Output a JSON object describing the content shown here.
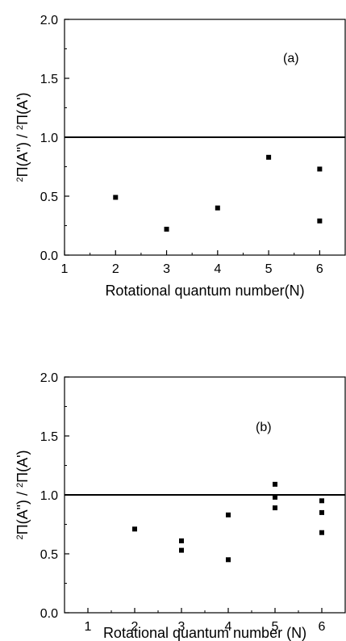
{
  "chart_data": [
    {
      "type": "scatter",
      "panel_label": "(a)",
      "xlabel": "Rotational quantum number(N)",
      "ylabel": {
        "pre_sup": "2",
        "num": "Π(A\")",
        "sep": " / ",
        "den_sup": "2",
        "den": "Π(A')"
      },
      "xlim": [
        1,
        6.5
      ],
      "ylim": [
        0,
        2
      ],
      "xticks": [
        1,
        2,
        3,
        4,
        5,
        6
      ],
      "yticks": [
        0.0,
        0.5,
        1.0,
        1.5,
        2.0
      ],
      "xtick_labels": [
        "1",
        "2",
        "3",
        "4",
        "5",
        "6"
      ],
      "ytick_labels": [
        "0.0",
        "0.5",
        "1.0",
        "1.5",
        "2.0"
      ],
      "reference_line_y": 1.0,
      "points": [
        {
          "x": 2,
          "y": 0.49
        },
        {
          "x": 3,
          "y": 0.22
        },
        {
          "x": 4,
          "y": 0.4
        },
        {
          "x": 5,
          "y": 0.83
        },
        {
          "x": 6,
          "y": 0.73
        },
        {
          "x": 6,
          "y": 0.29
        }
      ],
      "grid": false
    },
    {
      "type": "scatter",
      "panel_label": "(b)",
      "xlabel": "Rotational quantum number (N)",
      "ylabel": {
        "pre_sup": "2",
        "num": "Π(A\")",
        "sep": " / ",
        "den_sup": "2",
        "den": "Π(A')"
      },
      "xlim": [
        0.5,
        6.5
      ],
      "ylim": [
        0,
        2
      ],
      "xticks": [
        1,
        2,
        3,
        4,
        5,
        6
      ],
      "yticks": [
        0.0,
        0.5,
        1.0,
        1.5,
        2.0
      ],
      "xtick_labels": [
        "1",
        "2",
        "3",
        "4",
        "5",
        "6"
      ],
      "ytick_labels": [
        "0.0",
        "0.5",
        "1.0",
        "1.5",
        "2.0"
      ],
      "reference_line_y": 1.0,
      "points": [
        {
          "x": 2,
          "y": 0.71
        },
        {
          "x": 3,
          "y": 0.61
        },
        {
          "x": 3,
          "y": 0.53
        },
        {
          "x": 4,
          "y": 0.83
        },
        {
          "x": 4,
          "y": 0.45
        },
        {
          "x": 5,
          "y": 1.09
        },
        {
          "x": 5,
          "y": 0.98
        },
        {
          "x": 5,
          "y": 0.89
        },
        {
          "x": 6,
          "y": 0.95
        },
        {
          "x": 6,
          "y": 0.85
        },
        {
          "x": 6,
          "y": 0.68
        }
      ],
      "grid": false
    }
  ]
}
